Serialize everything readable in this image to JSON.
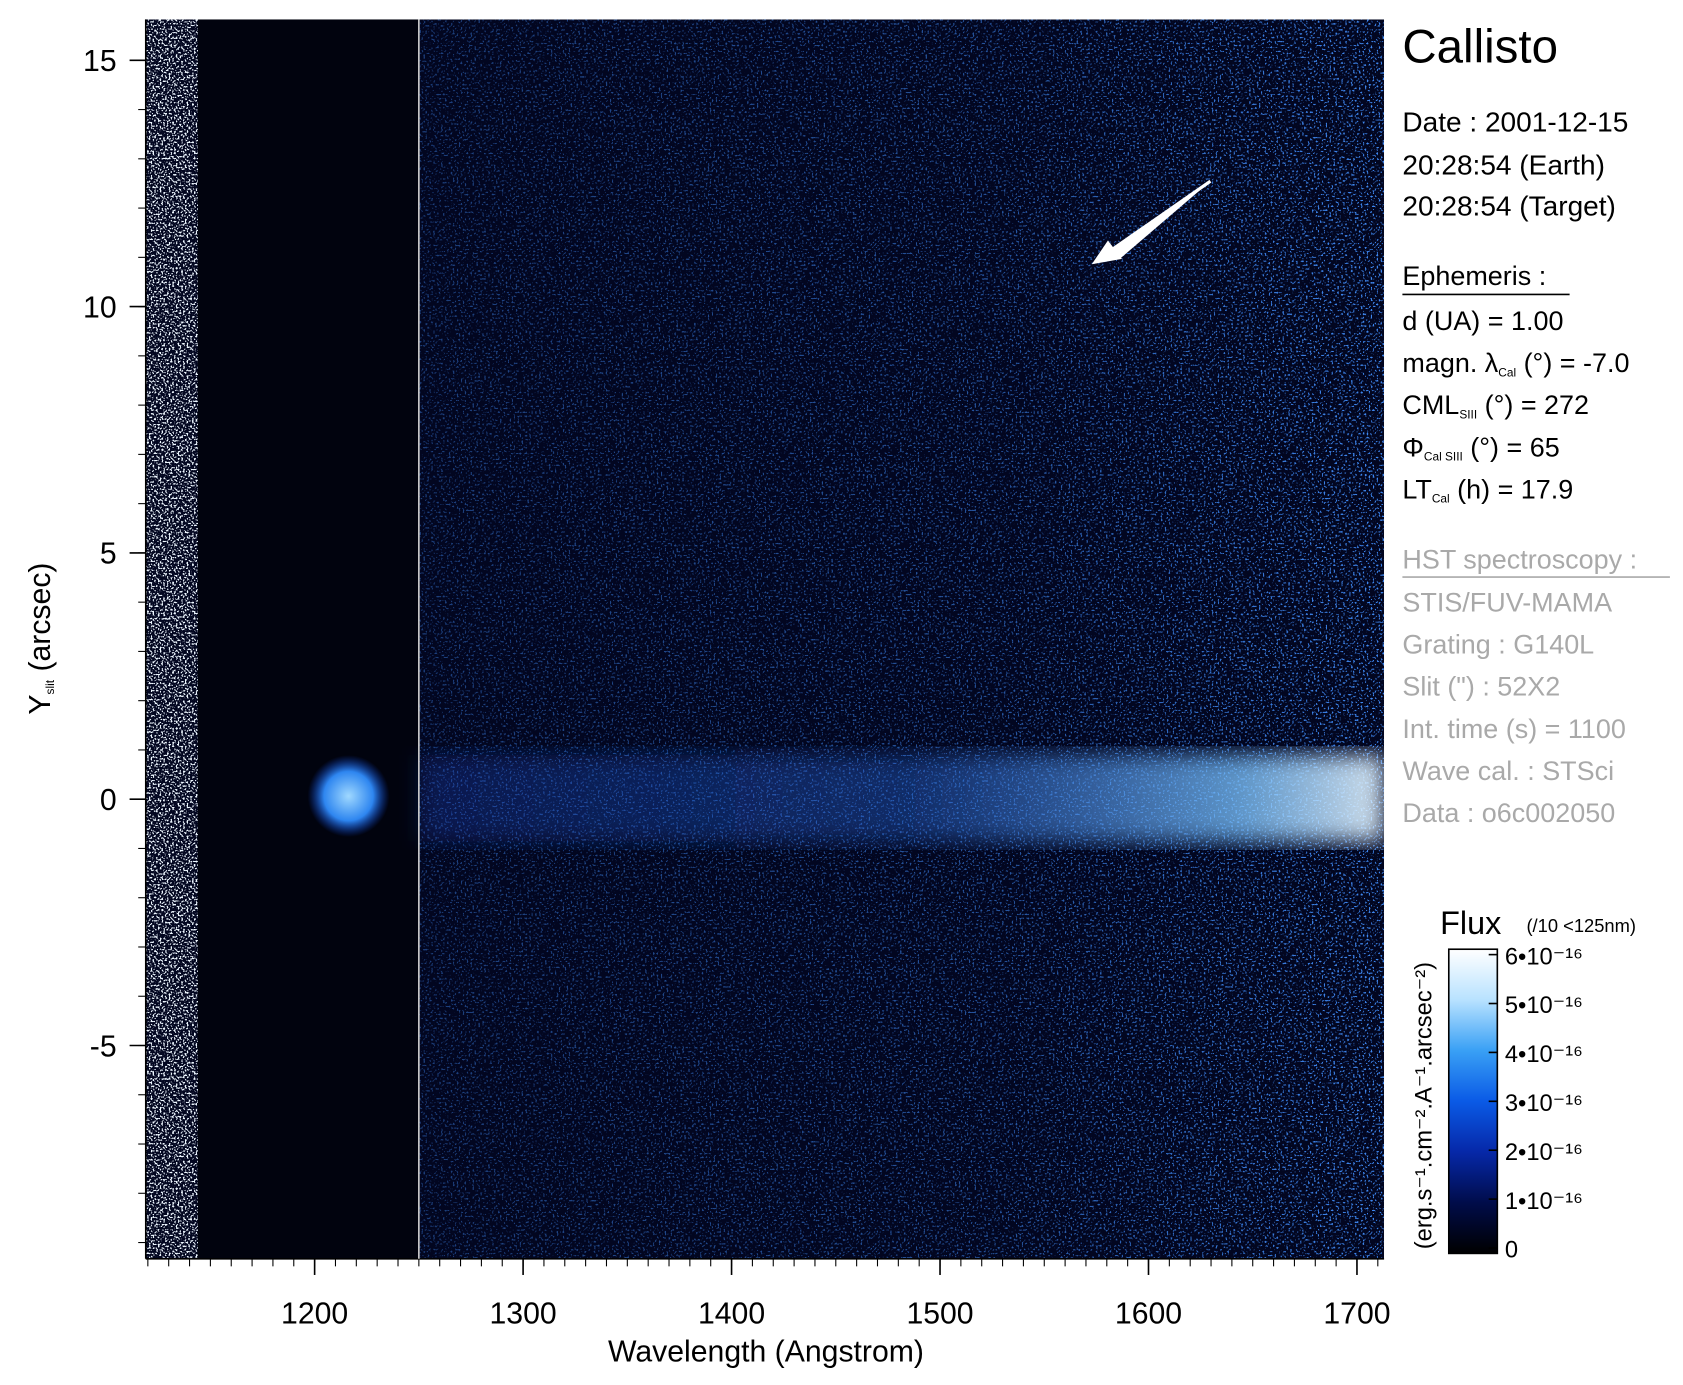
{
  "chart_data": {
    "type": "image",
    "title": "Callisto",
    "xlabel": "Wavelength (Angstrom)",
    "ylabel": [
      "Y",
      "slit",
      " (arcsec)"
    ],
    "xlim": [
      1119,
      1713
    ],
    "ylim": [
      -9.33,
      15.83
    ],
    "xticks": [
      1200,
      1300,
      1400,
      1500,
      1600,
      1700
    ],
    "yticks": [
      15,
      10,
      5,
      0,
      -5
    ],
    "xminor_step": 10,
    "yminor_step": 1,
    "vertical_line": 1250,
    "colorbar": {
      "title": "Flux",
      "note": "(/10 <125nm)",
      "label": "(erg.s⁻¹.cm⁻².A⁻¹.arcsec⁻²)",
      "clim": [
        0,
        6e-16
      ],
      "colormap": [
        "#000000",
        "#000c4a",
        "#0628a8",
        "#0a5ae6",
        "#39a0f5",
        "#b8e2ff",
        "#ffffff"
      ],
      "ticks": [
        0,
        {
          "value": 1e-16,
          "label": "1•10⁻¹⁶"
        },
        {
          "value": 2e-16,
          "label": "2•10⁻¹⁶"
        },
        {
          "value": 3e-16,
          "label": "3•10⁻¹⁶"
        },
        {
          "value": 4e-16,
          "label": "4•10⁻¹⁶"
        },
        {
          "value": 5e-16,
          "label": "5•10⁻¹⁶"
        },
        {
          "value": 6e-16,
          "label": "6•10⁻¹⁶"
        }
      ]
    },
    "info": {
      "date": [
        "Date : 2001-12-15",
        "20:28:54 (Earth)",
        "20:28:54 (Target)"
      ],
      "ephemeris_title": "Ephemeris :",
      "ephemeris": [
        [
          "d (UA)     = 1.00"
        ],
        [
          "magn. λ",
          "Cal",
          " (°)  = -7.0"
        ],
        [
          "CML",
          "SIII",
          " (°) = 272"
        ],
        [
          "Φ",
          "Cal SIII",
          " (°) = 65"
        ],
        [
          "LT",
          "Cal",
          " (h) = 17.9"
        ]
      ],
      "hst_title": "HST spectroscopy :",
      "hst": [
        "STIS/FUV-MAMA",
        "Grating : G140L",
        "Slit (\") : 52X2",
        "Int. time (s) = 1100",
        "Wave cal. : STSci",
        "Data : o6c002050"
      ]
    }
  }
}
